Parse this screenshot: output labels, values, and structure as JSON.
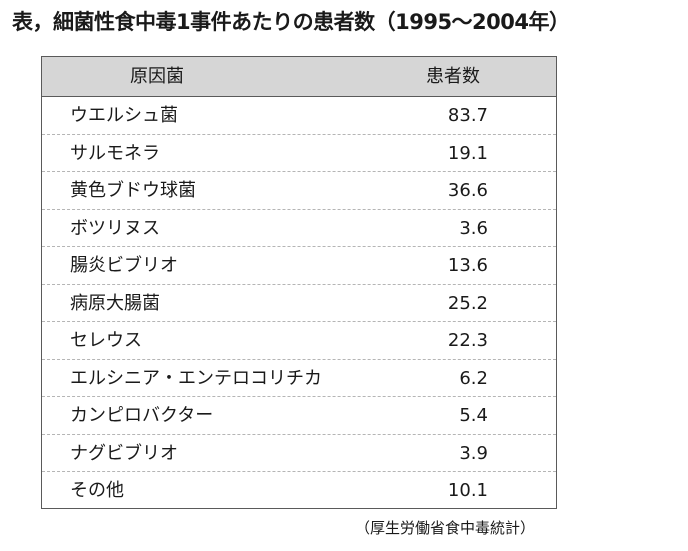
{
  "title": "表，細菌性食中毒1事件あたりの患者数（1995〜2004年）",
  "table": {
    "header": {
      "cause": "原因菌",
      "count": "患者数"
    },
    "rows": [
      {
        "name": "ウエルシュ菌",
        "count": "83.7"
      },
      {
        "name": "サルモネラ",
        "count": "19.1"
      },
      {
        "name": "黄色ブドウ球菌",
        "count": "36.6"
      },
      {
        "name": "ボツリヌス",
        "count": "3.6"
      },
      {
        "name": "腸炎ビブリオ",
        "count": "13.6"
      },
      {
        "name": "病原大腸菌",
        "count": "25.2"
      },
      {
        "name": "セレウス",
        "count": "22.3"
      },
      {
        "name": "エルシニア・エンテロコリチカ",
        "count": "6.2"
      },
      {
        "name": "カンピロバクター",
        "count": "5.4"
      },
      {
        "name": "ナグビブリオ",
        "count": "3.9"
      },
      {
        "name": "その他",
        "count": "10.1"
      }
    ]
  },
  "source": "（厚生労働省食中毒統計）"
}
